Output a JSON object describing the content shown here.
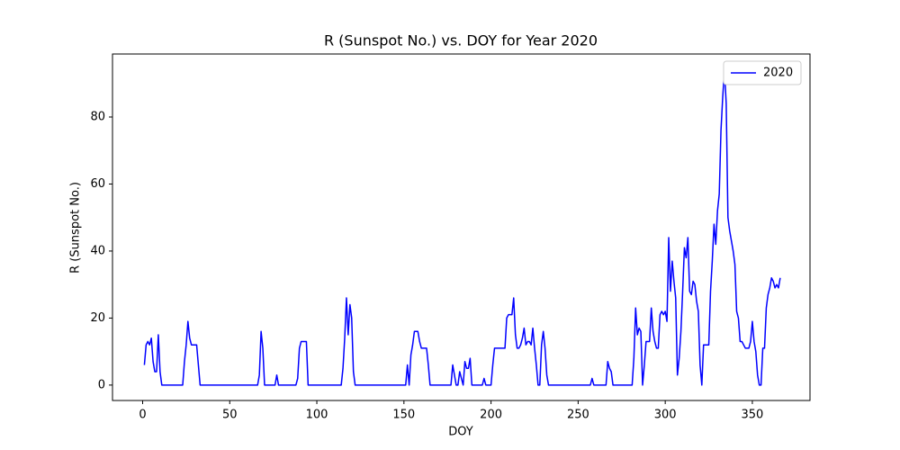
{
  "chart_data": {
    "type": "line",
    "title": "R (Sunspot No.) vs. DOY for Year 2020",
    "xlabel": "DOY",
    "ylabel": "R (Sunspot No.)",
    "xlim": [
      -17.3,
      383.1
    ],
    "ylim": [
      -4.6,
      98.8
    ],
    "xticks": [
      0,
      50,
      100,
      150,
      200,
      250,
      300,
      350
    ],
    "yticks": [
      0,
      20,
      40,
      60,
      80
    ],
    "grid": false,
    "legend": "upper right",
    "x": [
      1,
      2,
      3,
      4,
      5,
      6,
      7,
      8,
      9,
      10,
      11,
      12,
      13,
      14,
      15,
      16,
      17,
      18,
      19,
      20,
      21,
      22,
      23,
      24,
      25,
      26,
      27,
      28,
      29,
      30,
      31,
      32,
      33,
      34,
      35,
      36,
      37,
      38,
      39,
      40,
      41,
      42,
      43,
      44,
      45,
      46,
      47,
      48,
      49,
      50,
      51,
      52,
      53,
      54,
      55,
      56,
      57,
      58,
      59,
      60,
      61,
      62,
      63,
      64,
      65,
      66,
      67,
      68,
      69,
      70,
      71,
      72,
      73,
      74,
      75,
      76,
      77,
      78,
      79,
      80,
      81,
      82,
      83,
      84,
      85,
      86,
      87,
      88,
      89,
      90,
      91,
      92,
      93,
      94,
      95,
      96,
      97,
      98,
      99,
      100,
      101,
      102,
      103,
      104,
      105,
      106,
      107,
      108,
      109,
      110,
      111,
      112,
      113,
      114,
      115,
      116,
      117,
      118,
      119,
      120,
      121,
      122,
      123,
      124,
      125,
      126,
      127,
      128,
      129,
      130,
      131,
      132,
      133,
      134,
      135,
      136,
      137,
      138,
      139,
      140,
      141,
      142,
      143,
      144,
      145,
      146,
      147,
      148,
      149,
      150,
      151,
      152,
      153,
      154,
      155,
      156,
      157,
      158,
      159,
      160,
      161,
      162,
      163,
      164,
      165,
      166,
      167,
      168,
      169,
      170,
      171,
      172,
      173,
      174,
      175,
      176,
      177,
      178,
      179,
      180,
      181,
      182,
      183,
      184,
      185,
      186,
      187,
      188,
      189,
      190,
      191,
      192,
      193,
      194,
      195,
      196,
      197,
      198,
      199,
      200,
      201,
      202,
      203,
      204,
      205,
      206,
      207,
      208,
      209,
      210,
      211,
      212,
      213,
      214,
      215,
      216,
      217,
      218,
      219,
      220,
      221,
      222,
      223,
      224,
      225,
      226,
      227,
      228,
      229,
      230,
      231,
      232,
      233,
      234,
      235,
      236,
      237,
      238,
      239,
      240,
      241,
      242,
      243,
      244,
      245,
      246,
      247,
      248,
      249,
      250,
      251,
      252,
      253,
      254,
      255,
      256,
      257,
      258,
      259,
      260,
      261,
      262,
      263,
      264,
      265,
      266,
      267,
      268,
      269,
      270,
      271,
      272,
      273,
      274,
      275,
      276,
      277,
      278,
      279,
      280,
      281,
      282,
      283,
      284,
      285,
      286,
      287,
      288,
      289,
      290,
      291,
      292,
      293,
      294,
      295,
      296,
      297,
      298,
      299,
      300,
      301,
      302,
      303,
      304,
      305,
      306,
      307,
      308,
      309,
      310,
      311,
      312,
      313,
      314,
      315,
      316,
      317,
      318,
      319,
      320,
      321,
      322,
      323,
      324,
      325,
      326,
      327,
      328,
      329,
      330,
      331,
      332,
      333,
      334,
      335,
      336,
      337,
      338,
      339,
      340,
      341,
      342,
      343,
      344,
      345,
      346,
      347,
      348,
      349,
      350,
      351,
      352,
      353,
      354,
      355,
      356,
      357,
      358,
      359,
      360,
      361,
      362,
      363,
      364,
      365,
      366
    ],
    "series": [
      {
        "name": "2020",
        "color": "#0000ff",
        "values": [
          6,
          12,
          13,
          12,
          14,
          7,
          4,
          4,
          15,
          4,
          0,
          0,
          0,
          0,
          0,
          0,
          0,
          0,
          0,
          0,
          0,
          0,
          0,
          7,
          12,
          19,
          14,
          12,
          12,
          12,
          12,
          6,
          0,
          0,
          0,
          0,
          0,
          0,
          0,
          0,
          0,
          0,
          0,
          0,
          0,
          0,
          0,
          0,
          0,
          0,
          0,
          0,
          0,
          0,
          0,
          0,
          0,
          0,
          0,
          0,
          0,
          0,
          0,
          0,
          0,
          0,
          3,
          16,
          11,
          0,
          0,
          0,
          0,
          0,
          0,
          0,
          3,
          0,
          0,
          0,
          0,
          0,
          0,
          0,
          0,
          0,
          0,
          0,
          2,
          11,
          13,
          13,
          13,
          13,
          0,
          0,
          0,
          0,
          0,
          0,
          0,
          0,
          0,
          0,
          0,
          0,
          0,
          0,
          0,
          0,
          0,
          0,
          0,
          0,
          5,
          14,
          26,
          15,
          24,
          20,
          4,
          0,
          0,
          0,
          0,
          0,
          0,
          0,
          0,
          0,
          0,
          0,
          0,
          0,
          0,
          0,
          0,
          0,
          0,
          0,
          0,
          0,
          0,
          0,
          0,
          0,
          0,
          0,
          0,
          0,
          0,
          6,
          0,
          9,
          12,
          16,
          16,
          16,
          13,
          11,
          11,
          11,
          11,
          6,
          0,
          0,
          0,
          0,
          0,
          0,
          0,
          0,
          0,
          0,
          0,
          0,
          0,
          6,
          3,
          0,
          0,
          4,
          2,
          0,
          7,
          5,
          5,
          8,
          0,
          0,
          0,
          0,
          0,
          0,
          0,
          2,
          0,
          0,
          0,
          0,
          6,
          11,
          11,
          11,
          11,
          11,
          11,
          11,
          20,
          21,
          21,
          21,
          26,
          15,
          11,
          11,
          12,
          14,
          17,
          12,
          13,
          13,
          12,
          17,
          11,
          6,
          0,
          0,
          12,
          16,
          11,
          3,
          0,
          0,
          0,
          0,
          0,
          0,
          0,
          0,
          0,
          0,
          0,
          0,
          0,
          0,
          0,
          0,
          0,
          0,
          0,
          0,
          0,
          0,
          0,
          0,
          0,
          2,
          0,
          0,
          0,
          0,
          0,
          0,
          0,
          0,
          7,
          5,
          4,
          0,
          0,
          0,
          0,
          0,
          0,
          0,
          0,
          0,
          0,
          0,
          0,
          8,
          23,
          15,
          17,
          16,
          0,
          6,
          13,
          13,
          13,
          23,
          16,
          13,
          11,
          11,
          21,
          22,
          21,
          22,
          19,
          44,
          28,
          37,
          31,
          26,
          3,
          8,
          16,
          28,
          41,
          38,
          44,
          28,
          27,
          31,
          30,
          25,
          22,
          6,
          0,
          12,
          12,
          12,
          12,
          28,
          37,
          48,
          42,
          52,
          57,
          76,
          86,
          94,
          84,
          50,
          46,
          43,
          40,
          36,
          22,
          20,
          13,
          13,
          12,
          11,
          11,
          11,
          13,
          19,
          13,
          10,
          3,
          0,
          0,
          11,
          11,
          23,
          27,
          29,
          32,
          31,
          29,
          30,
          29,
          32
        ]
      }
    ]
  }
}
